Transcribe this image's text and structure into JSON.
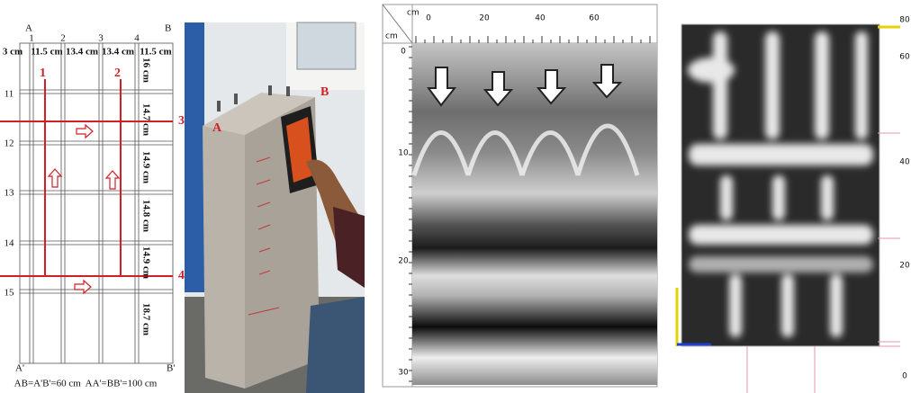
{
  "schematic": {
    "corner_top_left": "A",
    "corner_top_right": "B",
    "column_numbers": [
      "1",
      "2",
      "3",
      "4"
    ],
    "column_widths": [
      "3 cm",
      "11.5 cm",
      "13.4 cm",
      "13.4 cm",
      "11.5 cm"
    ],
    "scan_lines": [
      "1",
      "2",
      "3",
      "4"
    ],
    "row_spacings": [
      "16 cm",
      "14.7 cm",
      "14.9 cm",
      "14.8 cm",
      "14.9 cm",
      "18.7 cm"
    ],
    "row_numbers": [
      "11",
      "12",
      "13",
      "14",
      "15"
    ],
    "corner_bottom_left": "A'",
    "corner_bottom_right": "B'",
    "caption": "AB=A'B'=60 cm  AA'=BB'=100 cm"
  },
  "photo": {
    "label_a": "A",
    "label_b": "B"
  },
  "radargram": {
    "x_unit": "cm",
    "y_unit": "cm",
    "x_ticks": [
      "0",
      "20",
      "40",
      "60"
    ],
    "y_ticks": [
      "0",
      "10",
      "20",
      "30"
    ]
  },
  "cscan": {
    "y_ticks": [
      "80",
      "60",
      "40",
      "20",
      "0"
    ]
  }
}
